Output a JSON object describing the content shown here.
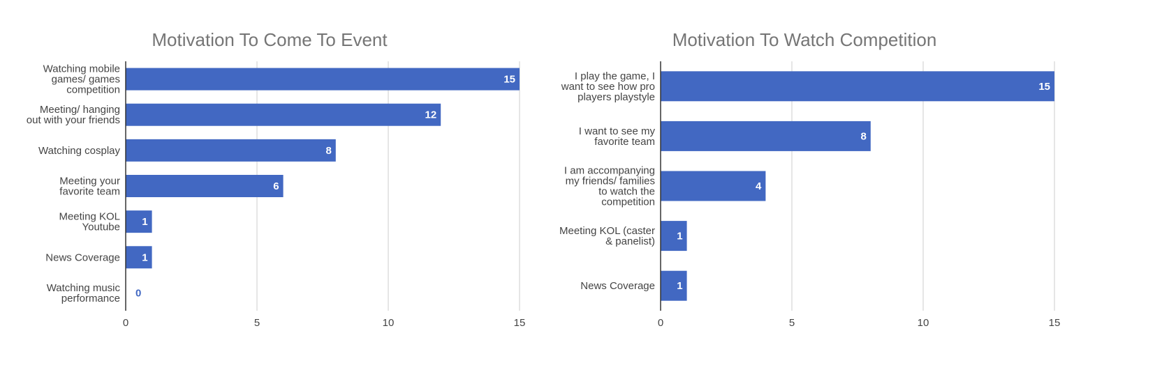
{
  "bar_color": "#4268c2",
  "grid_color": "#cccccc",
  "axis_color": "#333333",
  "chart_data": [
    {
      "type": "bar",
      "orientation": "horizontal",
      "title": "Motivation To Come To Event",
      "categories": [
        "Watching mobile games/ games competition",
        "Meeting/ hanging out with your friends",
        "Watching cosplay",
        "Meeting your favorite team",
        "Meeting KOL Youtube",
        "News Coverage",
        "Watching music performance"
      ],
      "category_lines": [
        [
          "Watching mobile",
          "games/ games",
          "competition"
        ],
        [
          "Meeting/ hanging",
          "out with your friends"
        ],
        [
          "Watching cosplay"
        ],
        [
          "Meeting your",
          "favorite team"
        ],
        [
          "Meeting KOL",
          "Youtube"
        ],
        [
          "News Coverage"
        ],
        [
          "Watching music",
          "performance"
        ]
      ],
      "values": [
        15,
        12,
        8,
        6,
        1,
        1,
        0
      ],
      "xlim": [
        0,
        15
      ],
      "ticks": [
        0,
        5,
        10,
        15
      ],
      "grid": true,
      "legend": "none"
    },
    {
      "type": "bar",
      "orientation": "horizontal",
      "title": "Motivation To Watch Competition",
      "categories": [
        "I play the game, I want to see how pro players playstyle",
        "I want to see my favorite team",
        "I am accompanying my friends/ families to watch the competition",
        "Meeting KOL (caster & panelist)",
        "News Coverage"
      ],
      "category_lines": [
        [
          "I play the game, I",
          "want to see how pro",
          "players playstyle"
        ],
        [
          "I want to see my",
          "favorite team"
        ],
        [
          "I am accompanying",
          "my friends/ families",
          "to watch the",
          "competition"
        ],
        [
          "Meeting KOL (caster",
          "& panelist)"
        ],
        [
          "News Coverage"
        ]
      ],
      "values": [
        15,
        8,
        4,
        1,
        1
      ],
      "xlim": [
        0,
        15
      ],
      "ticks": [
        0,
        5,
        10,
        15
      ],
      "grid": true,
      "legend": "none"
    }
  ]
}
